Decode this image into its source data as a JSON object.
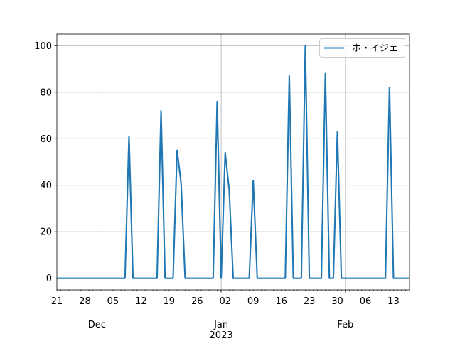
{
  "chart_data": {
    "type": "line",
    "x": [
      "2022-11-21",
      "2022-11-22",
      "2022-11-23",
      "2022-11-24",
      "2022-11-25",
      "2022-11-26",
      "2022-11-27",
      "2022-11-28",
      "2022-11-29",
      "2022-11-30",
      "2022-12-01",
      "2022-12-02",
      "2022-12-03",
      "2022-12-04",
      "2022-12-05",
      "2022-12-06",
      "2022-12-07",
      "2022-12-08",
      "2022-12-09",
      "2022-12-10",
      "2022-12-11",
      "2022-12-12",
      "2022-12-13",
      "2022-12-14",
      "2022-12-15",
      "2022-12-16",
      "2022-12-17",
      "2022-12-18",
      "2022-12-19",
      "2022-12-20",
      "2022-12-21",
      "2022-12-22",
      "2022-12-23",
      "2022-12-24",
      "2022-12-25",
      "2022-12-26",
      "2022-12-27",
      "2022-12-28",
      "2022-12-29",
      "2022-12-30",
      "2022-12-31",
      "2023-01-01",
      "2023-01-02",
      "2023-01-03",
      "2023-01-04",
      "2023-01-05",
      "2023-01-06",
      "2023-01-07",
      "2023-01-08",
      "2023-01-09",
      "2023-01-10",
      "2023-01-11",
      "2023-01-12",
      "2023-01-13",
      "2023-01-14",
      "2023-01-15",
      "2023-01-16",
      "2023-01-17",
      "2023-01-18",
      "2023-01-19",
      "2023-01-20",
      "2023-01-21",
      "2023-01-22",
      "2023-01-23",
      "2023-01-24",
      "2023-01-25",
      "2023-01-26",
      "2023-01-27",
      "2023-01-28",
      "2023-01-29",
      "2023-01-30",
      "2023-01-31",
      "2023-02-01",
      "2023-02-02",
      "2023-02-03",
      "2023-02-04",
      "2023-02-05",
      "2023-02-06",
      "2023-02-07",
      "2023-02-08",
      "2023-02-09",
      "2023-02-10",
      "2023-02-11",
      "2023-02-12",
      "2023-02-13",
      "2023-02-14",
      "2023-02-15",
      "2023-02-16",
      "2023-02-17"
    ],
    "series": [
      {
        "name": "ホ・イジェ",
        "color": "#1f77b4",
        "values": [
          0,
          0,
          0,
          0,
          0,
          0,
          0,
          0,
          0,
          0,
          0,
          0,
          0,
          0,
          0,
          0,
          0,
          0,
          61,
          0,
          0,
          0,
          0,
          0,
          0,
          0,
          72,
          0,
          0,
          0,
          55,
          41,
          0,
          0,
          0,
          0,
          0,
          0,
          0,
          0,
          76,
          0,
          54,
          38,
          0,
          0,
          0,
          0,
          0,
          42,
          0,
          0,
          0,
          0,
          0,
          0,
          0,
          0,
          87,
          0,
          0,
          0,
          100,
          0,
          0,
          0,
          0,
          88,
          0,
          0,
          63,
          0,
          0,
          0,
          0,
          0,
          0,
          0,
          0,
          0,
          0,
          0,
          0,
          82,
          0,
          0,
          0,
          0,
          0
        ]
      }
    ],
    "xlim": [
      "2022-11-21",
      "2023-02-17"
    ],
    "ylim": [
      -5,
      105
    ],
    "yticks": [
      0,
      20,
      40,
      60,
      80,
      100
    ],
    "x_ticks": [
      {
        "value": "2022-11-21",
        "label": "21"
      },
      {
        "value": "2022-11-28",
        "label": "28"
      },
      {
        "value": "2022-12-05",
        "label": "05"
      },
      {
        "value": "2022-12-12",
        "label": "12"
      },
      {
        "value": "2022-12-19",
        "label": "19"
      },
      {
        "value": "2022-12-26",
        "label": "26"
      },
      {
        "value": "2023-01-02",
        "label": "02"
      },
      {
        "value": "2023-01-09",
        "label": "09"
      },
      {
        "value": "2023-01-16",
        "label": "16"
      },
      {
        "value": "2023-01-23",
        "label": "23"
      },
      {
        "value": "2023-01-30",
        "label": "30"
      },
      {
        "value": "2023-02-06",
        "label": "06"
      },
      {
        "value": "2023-02-13",
        "label": "13"
      }
    ],
    "x_major_ticks": [
      {
        "value": "2022-12-01",
        "label": "Dec"
      },
      {
        "value": "2023-01-01",
        "label": "Jan",
        "year": "2023"
      },
      {
        "value": "2023-02-01",
        "label": "Feb"
      }
    ],
    "grid": true,
    "legend": "upper right"
  }
}
